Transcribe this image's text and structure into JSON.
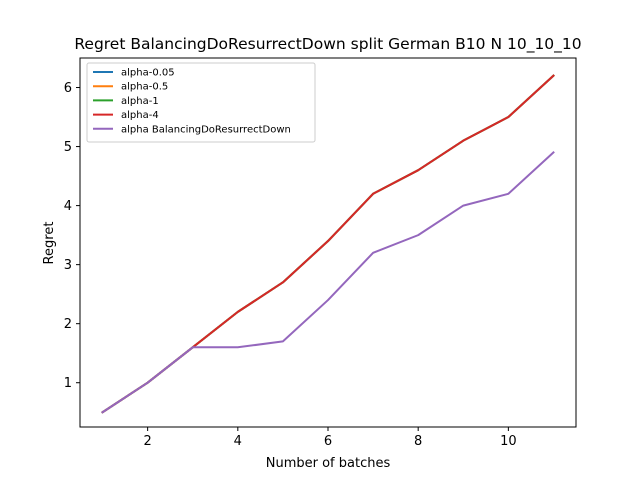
{
  "chart_data": {
    "type": "line",
    "title": "Regret BalancingDoResurrectDown split German B10 N 10_10_10",
    "xlabel": "Number of batches",
    "ylabel": "Regret",
    "xlim": [
      0.5,
      11.5
    ],
    "ylim": [
      0.25,
      6.5
    ],
    "xticks": [
      2,
      4,
      6,
      8,
      10
    ],
    "yticks": [
      1,
      2,
      3,
      4,
      5,
      6
    ],
    "legend_position": "top-left",
    "grid": false,
    "x": [
      1,
      2,
      3,
      4,
      5,
      6,
      7,
      8,
      9,
      10,
      11
    ],
    "series": [
      {
        "name": "alpha-0.05",
        "color": "#1f77b4",
        "values": [
          0.5,
          1.0,
          1.6,
          2.2,
          2.7,
          3.4,
          4.2,
          4.6,
          5.1,
          5.5,
          6.2
        ]
      },
      {
        "name": "alpha-0.5",
        "color": "#ff7f0e",
        "values": [
          0.5,
          1.0,
          1.6,
          2.2,
          2.7,
          3.4,
          4.2,
          4.6,
          5.1,
          5.5,
          6.2
        ]
      },
      {
        "name": "alpha-1",
        "color": "#2ca02c",
        "values": [
          0.5,
          1.0,
          1.6,
          2.2,
          2.7,
          3.4,
          4.2,
          4.6,
          5.1,
          5.5,
          6.2
        ]
      },
      {
        "name": "alpha-4",
        "color": "#d62728",
        "values": [
          0.5,
          1.0,
          1.6,
          2.2,
          2.7,
          3.4,
          4.2,
          4.6,
          5.1,
          5.5,
          6.2
        ]
      },
      {
        "name": "alpha BalancingDoResurrectDown",
        "color": "#9467bd",
        "values": [
          0.5,
          1.0,
          1.6,
          1.6,
          1.7,
          2.4,
          3.2,
          3.5,
          4.0,
          4.2,
          4.9
        ]
      }
    ]
  }
}
